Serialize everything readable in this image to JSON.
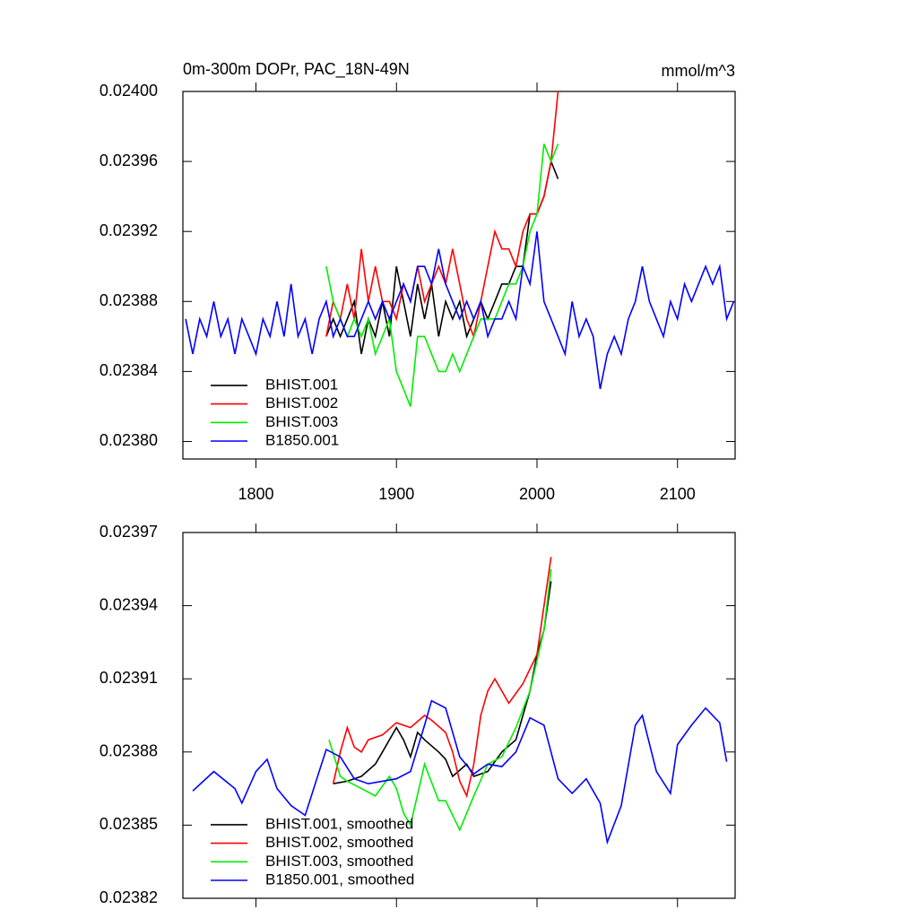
{
  "chart_data": [
    {
      "type": "line",
      "title": "0m-300m DOPr, PAC_18N-49N",
      "units": "mmol/m^3",
      "xlim": [
        1748,
        2141
      ],
      "xticks": [
        1800,
        1900,
        2000,
        2100
      ],
      "xtick_labels": true,
      "ylim": [
        0.02379,
        0.024
      ],
      "yticks": [
        {
          "value": 0.024,
          "label": "0.02400"
        },
        0.02396,
        0.02392,
        0.02388,
        0.02384,
        {
          "value": 0.0238,
          "label": "0.02380"
        }
      ],
      "legend": "lower left",
      "series": [
        {
          "name": "BHIST.001",
          "color": "#000000",
          "x": [
            1850,
            1855,
            1860,
            1865,
            1870,
            1875,
            1880,
            1885,
            1890,
            1895,
            1900,
            1905,
            1910,
            1915,
            1920,
            1925,
            1930,
            1935,
            1940,
            1945,
            1950,
            1955,
            1960,
            1965,
            1970,
            1975,
            1980,
            1985,
            1990,
            1995,
            2000,
            2005,
            2010,
            2015
          ],
          "values": [
            0.02386,
            0.02387,
            0.02386,
            0.02387,
            0.02388,
            0.02385,
            0.02387,
            0.02386,
            0.02388,
            0.02386,
            0.0239,
            0.02388,
            0.02386,
            0.02389,
            0.02387,
            0.02389,
            0.02386,
            0.02388,
            0.02387,
            0.02388,
            0.02386,
            0.02387,
            0.02388,
            0.02387,
            0.02388,
            0.02389,
            0.02389,
            0.0239,
            0.0239,
            0.02393,
            0.02393,
            0.02394,
            0.02396,
            0.02395
          ]
        },
        {
          "name": "BHIST.002",
          "color": "#ff0000",
          "x": [
            1850,
            1855,
            1860,
            1865,
            1870,
            1875,
            1880,
            1885,
            1890,
            1895,
            1900,
            1905,
            1910,
            1915,
            1920,
            1925,
            1930,
            1935,
            1940,
            1945,
            1950,
            1955,
            1960,
            1965,
            1970,
            1975,
            1980,
            1985,
            1990,
            1995,
            2000,
            2005,
            2010,
            2015
          ],
          "values": [
            0.02386,
            0.02388,
            0.02387,
            0.02389,
            0.02387,
            0.02391,
            0.02388,
            0.0239,
            0.02388,
            0.02388,
            0.02387,
            0.02389,
            0.02388,
            0.0239,
            0.02388,
            0.02389,
            0.0239,
            0.02389,
            0.02391,
            0.02389,
            0.02387,
            0.02386,
            0.02388,
            0.0239,
            0.02392,
            0.02391,
            0.02391,
            0.0239,
            0.02392,
            0.02393,
            0.02393,
            0.02394,
            0.02396,
            0.024
          ]
        },
        {
          "name": "BHIST.003",
          "color": "#00ee00",
          "x": [
            1850,
            1855,
            1860,
            1865,
            1870,
            1875,
            1880,
            1885,
            1890,
            1895,
            1900,
            1905,
            1910,
            1915,
            1920,
            1925,
            1930,
            1935,
            1940,
            1945,
            1950,
            1955,
            1960,
            1965,
            1970,
            1975,
            1980,
            1985,
            1990,
            1995,
            2000,
            2005,
            2010,
            2015
          ],
          "values": [
            0.0239,
            0.02388,
            0.02387,
            0.02386,
            0.02387,
            0.02386,
            0.02387,
            0.02385,
            0.02386,
            0.02387,
            0.02384,
            0.02383,
            0.02382,
            0.02386,
            0.02386,
            0.02385,
            0.02384,
            0.02384,
            0.02385,
            0.02384,
            0.02385,
            0.02386,
            0.02387,
            0.02387,
            0.02387,
            0.02388,
            0.02389,
            0.02389,
            0.0239,
            0.02392,
            0.02393,
            0.02397,
            0.02396,
            0.02397
          ]
        },
        {
          "name": "B1850.001",
          "color": "#0000ff",
          "x": [
            1750,
            1755,
            1760,
            1765,
            1770,
            1775,
            1780,
            1785,
            1790,
            1795,
            1800,
            1805,
            1810,
            1815,
            1820,
            1825,
            1830,
            1835,
            1840,
            1845,
            1850,
            1855,
            1860,
            1865,
            1870,
            1875,
            1880,
            1885,
            1890,
            1895,
            1900,
            1905,
            1910,
            1915,
            1920,
            1925,
            1930,
            1935,
            1940,
            1945,
            1950,
            1955,
            1960,
            1965,
            1970,
            1975,
            1980,
            1985,
            1990,
            1995,
            2000,
            2005,
            2010,
            2015,
            2020,
            2025,
            2030,
            2035,
            2040,
            2045,
            2050,
            2055,
            2060,
            2065,
            2070,
            2075,
            2080,
            2085,
            2090,
            2095,
            2100,
            2105,
            2110,
            2115,
            2120,
            2125,
            2130,
            2135,
            2140
          ],
          "values": [
            0.02387,
            0.02385,
            0.02387,
            0.02386,
            0.02388,
            0.02386,
            0.02387,
            0.02385,
            0.02387,
            0.02386,
            0.02385,
            0.02387,
            0.02386,
            0.02388,
            0.02386,
            0.02389,
            0.02386,
            0.02387,
            0.02385,
            0.02387,
            0.02388,
            0.02386,
            0.02387,
            0.02386,
            0.02386,
            0.02387,
            0.02388,
            0.02387,
            0.02388,
            0.02387,
            0.02388,
            0.02389,
            0.02388,
            0.0239,
            0.0239,
            0.02389,
            0.02391,
            0.02389,
            0.02388,
            0.02387,
            0.02388,
            0.02387,
            0.02388,
            0.02386,
            0.02387,
            0.02387,
            0.02388,
            0.02387,
            0.0239,
            0.02389,
            0.02392,
            0.02388,
            0.02387,
            0.02386,
            0.02385,
            0.02388,
            0.02386,
            0.02387,
            0.02386,
            0.02383,
            0.02385,
            0.02386,
            0.02385,
            0.02387,
            0.02388,
            0.0239,
            0.02388,
            0.02387,
            0.02386,
            0.02388,
            0.02387,
            0.02389,
            0.02388,
            0.02389,
            0.0239,
            0.02389,
            0.0239,
            0.02387,
            0.02388
          ]
        }
      ]
    },
    {
      "type": "line",
      "xlim": [
        1748,
        2141
      ],
      "xticks": [
        1800,
        1900,
        2000,
        2100
      ],
      "xtick_labels": false,
      "ylim": [
        0.02382,
        0.02397
      ],
      "yticks": [
        0.02397,
        0.02394,
        0.02391,
        0.02388,
        0.02385,
        0.02382
      ],
      "legend": "lower left",
      "series": [
        {
          "name": "BHIST.001, smoothed",
          "color": "#000000",
          "x": [
            1855,
            1865,
            1875,
            1885,
            1890,
            1900,
            1905,
            1910,
            1915,
            1920,
            1930,
            1935,
            1940,
            1950,
            1955,
            1965,
            1975,
            1985,
            1990,
            1995,
            2000,
            2005,
            2010
          ],
          "values": [
            0.023867,
            0.023868,
            0.02387,
            0.023875,
            0.02388,
            0.02389,
            0.023885,
            0.023878,
            0.023888,
            0.023885,
            0.02388,
            0.023877,
            0.02387,
            0.023875,
            0.02387,
            0.023872,
            0.02388,
            0.023885,
            0.023895,
            0.023905,
            0.02392,
            0.02393,
            0.02395
          ]
        },
        {
          "name": "BHIST.002, smoothed",
          "color": "#ff0000",
          "x": [
            1855,
            1860,
            1865,
            1870,
            1875,
            1880,
            1890,
            1900,
            1910,
            1920,
            1925,
            1935,
            1940,
            1945,
            1950,
            1955,
            1960,
            1965,
            1970,
            1980,
            1990,
            2000,
            2010
          ],
          "values": [
            0.023867,
            0.02388,
            0.02389,
            0.023882,
            0.02388,
            0.023885,
            0.023887,
            0.023892,
            0.02389,
            0.023895,
            0.023893,
            0.023888,
            0.02388,
            0.023868,
            0.023862,
            0.023875,
            0.023895,
            0.023905,
            0.02391,
            0.0239,
            0.023908,
            0.02392,
            0.02396
          ]
        },
        {
          "name": "BHIST.003, smoothed",
          "color": "#00ee00",
          "x": [
            1852,
            1860,
            1865,
            1875,
            1885,
            1895,
            1900,
            1905,
            1910,
            1920,
            1930,
            1935,
            1945,
            1955,
            1965,
            1975,
            1985,
            1995,
            2005,
            2010
          ],
          "values": [
            0.023885,
            0.02387,
            0.023868,
            0.023865,
            0.023862,
            0.02387,
            0.023865,
            0.023855,
            0.02385,
            0.023875,
            0.02386,
            0.02386,
            0.023848,
            0.023862,
            0.023875,
            0.023878,
            0.02389,
            0.023905,
            0.02393,
            0.023955
          ]
        },
        {
          "name": "B1850.001, smoothed",
          "color": "#0000ff",
          "x": [
            1755,
            1770,
            1785,
            1790,
            1800,
            1808,
            1815,
            1825,
            1835,
            1845,
            1850,
            1860,
            1870,
            1880,
            1890,
            1900,
            1910,
            1920,
            1925,
            1935,
            1945,
            1955,
            1965,
            1975,
            1985,
            1995,
            2005,
            2015,
            2025,
            2035,
            2045,
            2050,
            2060,
            2070,
            2075,
            2085,
            2095,
            2100,
            2110,
            2120,
            2130,
            2135
          ],
          "values": [
            0.023864,
            0.023872,
            0.023865,
            0.023859,
            0.023872,
            0.023877,
            0.023865,
            0.023858,
            0.023854,
            0.023872,
            0.023881,
            0.023878,
            0.023869,
            0.023867,
            0.023868,
            0.023869,
            0.023872,
            0.023891,
            0.023901,
            0.023898,
            0.023878,
            0.023871,
            0.023875,
            0.023874,
            0.02388,
            0.023894,
            0.023891,
            0.023869,
            0.023863,
            0.023869,
            0.023859,
            0.023843,
            0.023858,
            0.023891,
            0.023895,
            0.023872,
            0.023863,
            0.023883,
            0.023891,
            0.023898,
            0.023892,
            0.023876
          ]
        }
      ]
    }
  ]
}
